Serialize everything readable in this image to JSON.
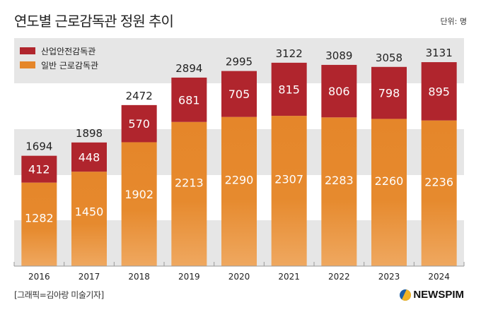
{
  "header": {
    "title": "연도별 근로감독관 정원 추이",
    "unit": "단위: 명"
  },
  "footer": {
    "credit": "[그래픽=김아랑 미술기자]",
    "logo": "NEWSPIM"
  },
  "colors": {
    "safety": "#b0252d",
    "general": "#e5862a",
    "band": "#e6e6e6"
  },
  "chart_data": {
    "type": "bar",
    "stacked": true,
    "title": "연도별 근로감독관 정원 추이",
    "unit": "단위: 명",
    "categories": [
      "2016",
      "2017",
      "2018",
      "2019",
      "2020",
      "2021",
      "2022",
      "2023",
      "2024"
    ],
    "series": [
      {
        "name": "일반 근로감독관",
        "values": [
          1282,
          1450,
          1902,
          2213,
          2290,
          2307,
          2283,
          2260,
          2236
        ]
      },
      {
        "name": "산업안전감독관",
        "values": [
          412,
          448,
          570,
          681,
          705,
          815,
          806,
          798,
          895
        ]
      }
    ],
    "totals": [
      1694,
      1898,
      2472,
      2894,
      2995,
      3122,
      3089,
      3058,
      3131
    ],
    "ylim": [
      0,
      3500
    ],
    "legend": [
      "산업안전감독관",
      "일반 근로감독관"
    ],
    "legend_position": "top-left"
  }
}
